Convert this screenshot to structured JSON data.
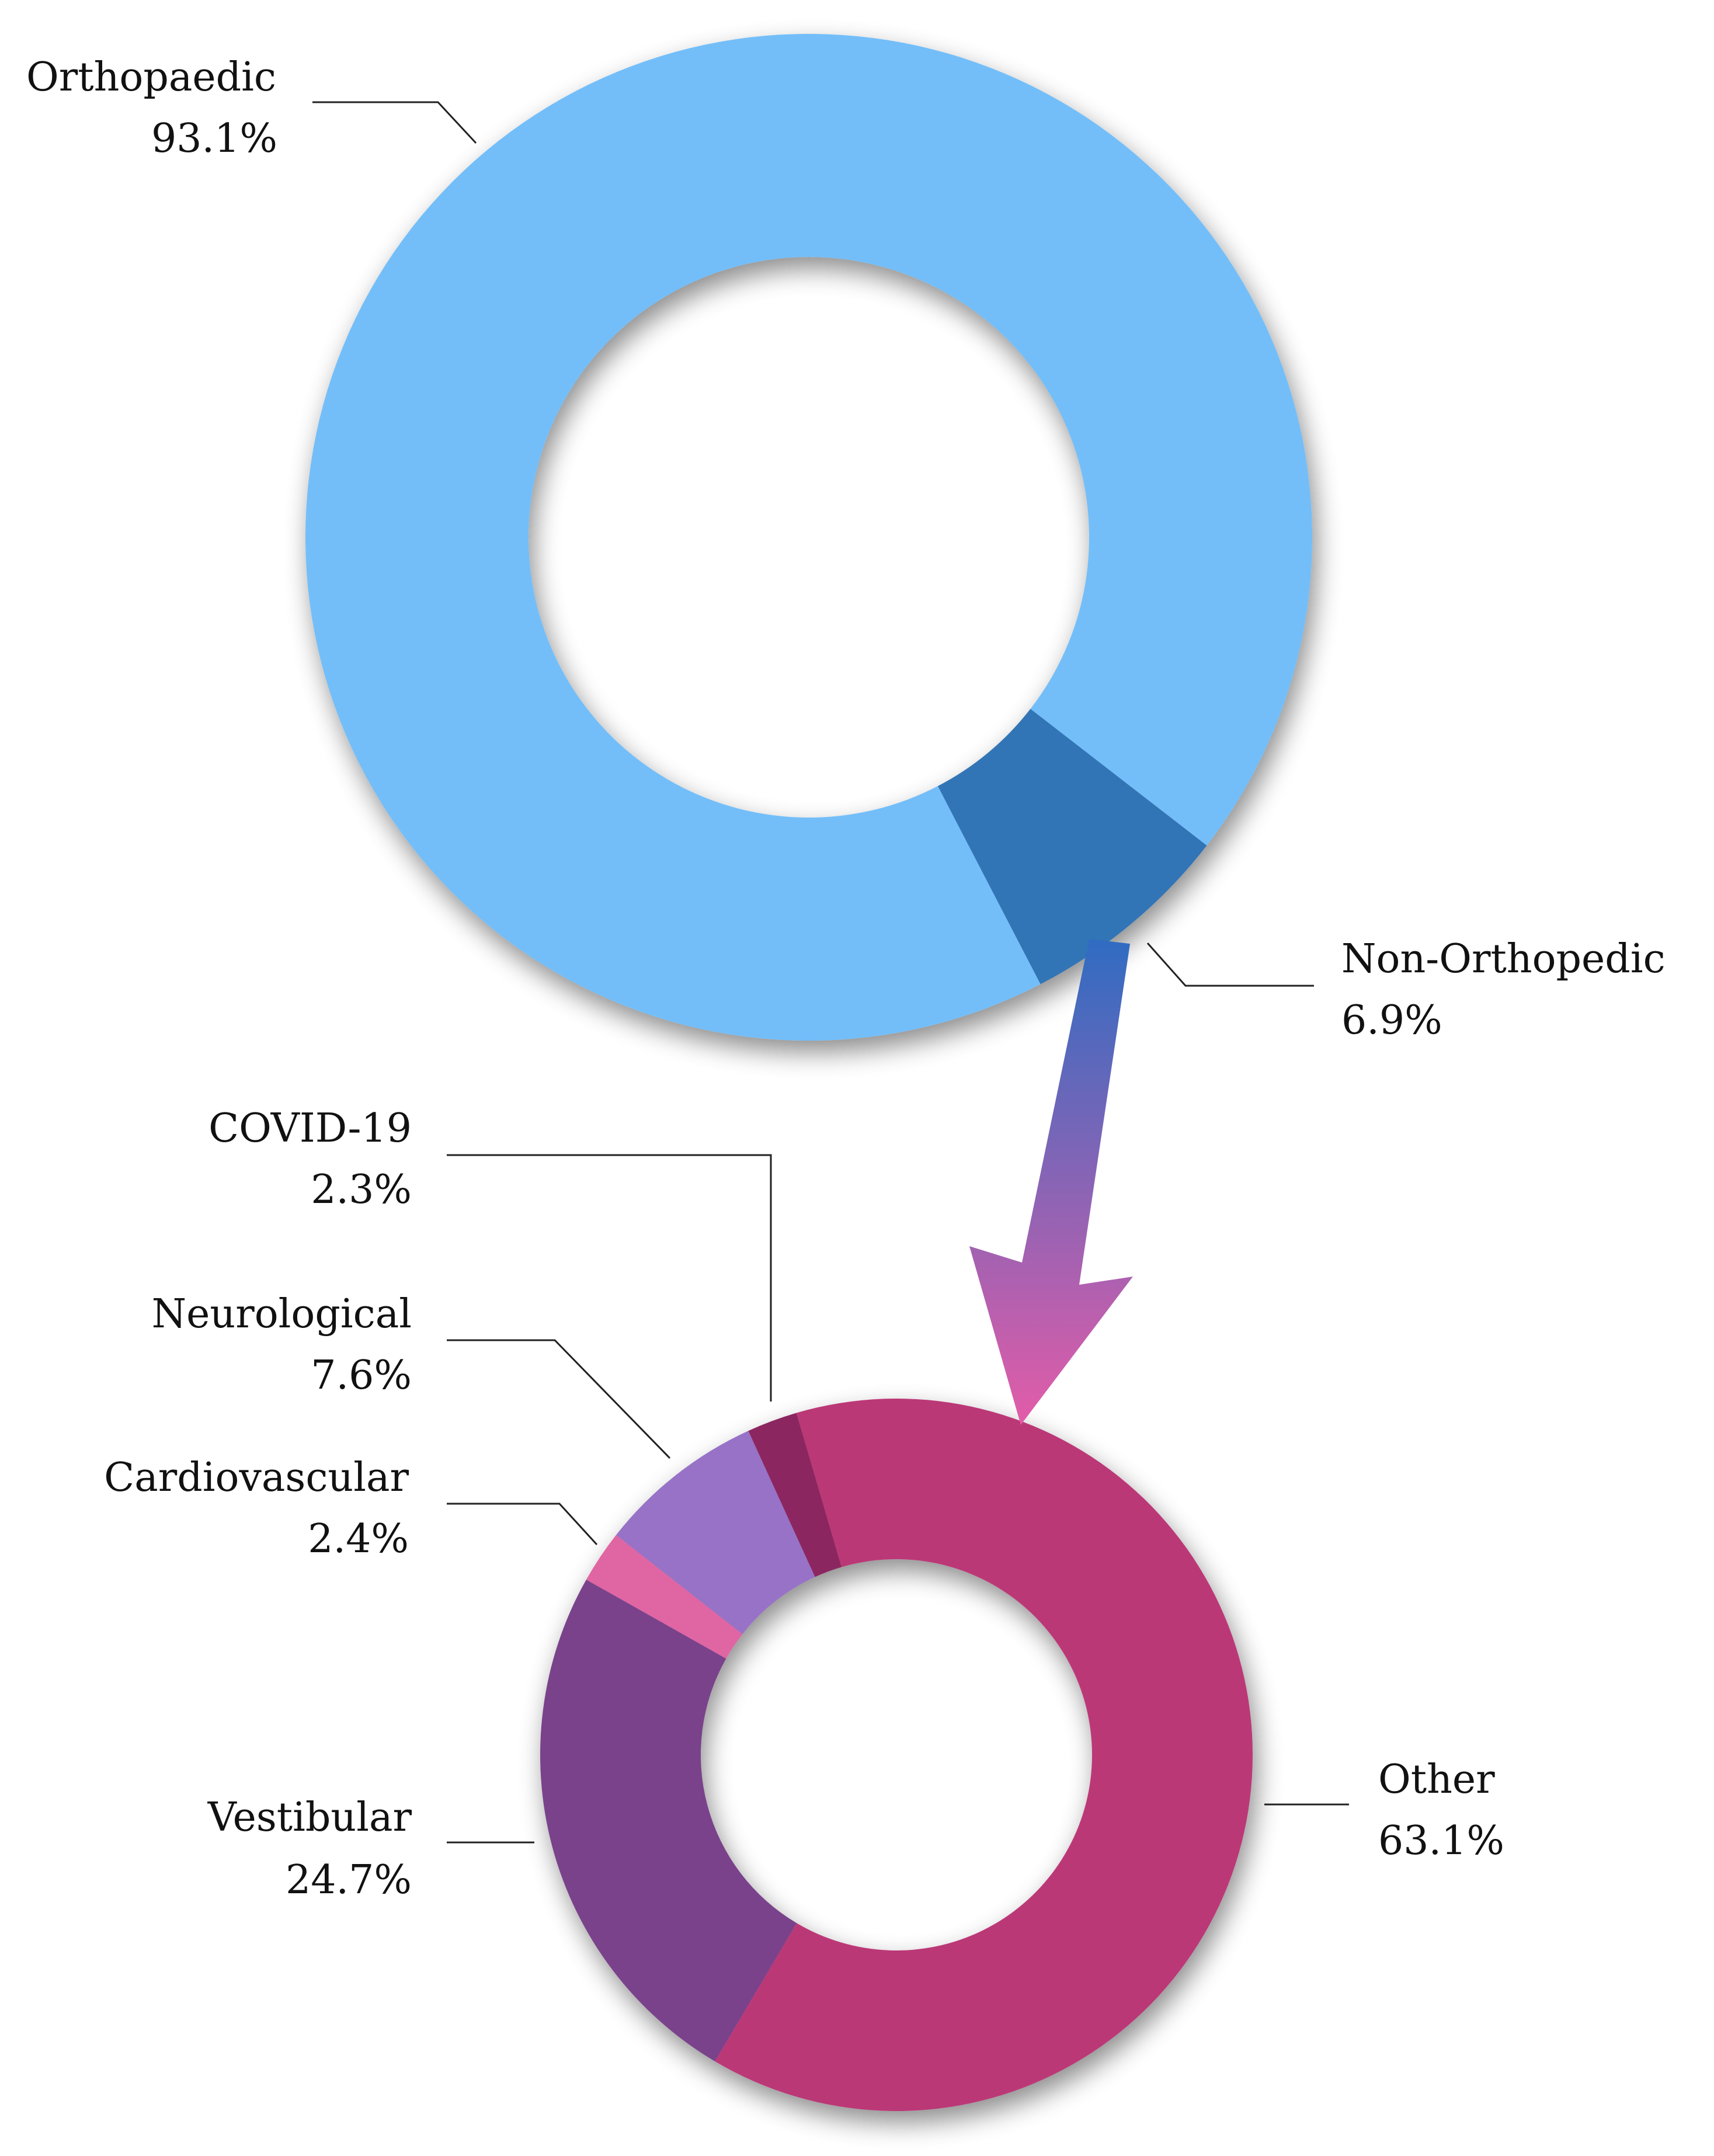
{
  "chart_data": [
    {
      "type": "pie",
      "variant": "donut",
      "series": [
        {
          "name": "Orthopaedic",
          "value": 93.1,
          "label": "93.1%",
          "color": "#73BEF9"
        },
        {
          "name": "Non-Orthopedic",
          "value": 6.9,
          "label": "6.9%",
          "color": "#3374B6"
        }
      ]
    },
    {
      "type": "pie",
      "variant": "donut",
      "series": [
        {
          "name": "Other",
          "value": 63.1,
          "label": "63.1%",
          "color": "#BB3977"
        },
        {
          "name": "Vestibular",
          "value": 24.7,
          "label": "24.7%",
          "color": "#7A428B"
        },
        {
          "name": "Cardiovascular",
          "value": 2.4,
          "label": "2.4%",
          "color": "#E065A3"
        },
        {
          "name": "Neurological",
          "value": 7.6,
          "label": "7.6%",
          "color": "#9772C6"
        },
        {
          "name": "COVID-19",
          "value": 2.3,
          "label": "2.3%",
          "color": "#8C2560"
        }
      ]
    }
  ],
  "colors": {
    "arrow_top": "#2F6CC2",
    "arrow_bottom": "#E35CA8",
    "background": "#FFFFFF"
  }
}
